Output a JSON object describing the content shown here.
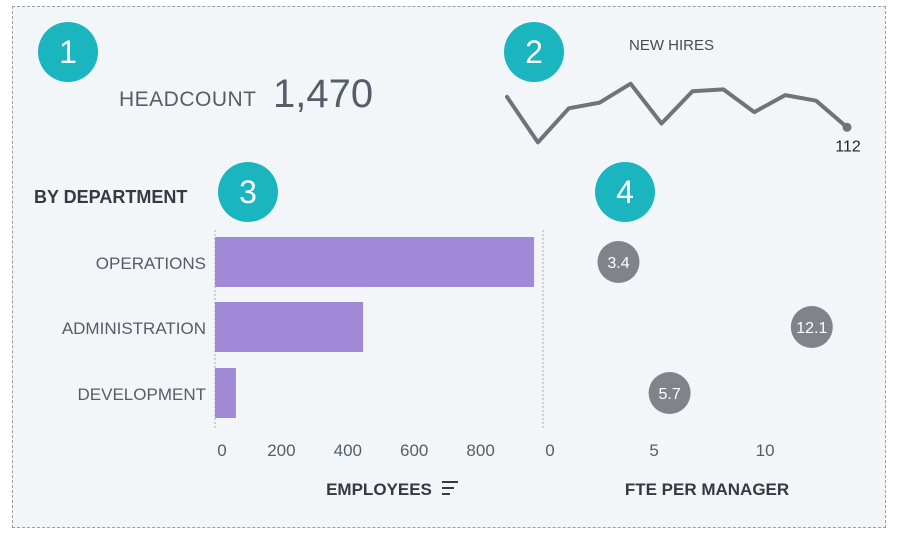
{
  "badges": [
    "1",
    "2",
    "3",
    "4"
  ],
  "headcount": {
    "label": "HEADCOUNT",
    "value": "1,470"
  },
  "new_hires": {
    "title": "NEW HIRES",
    "last_label": "112"
  },
  "section_title": "BY DEPARTMENT",
  "colors": {
    "badge": "#1bb5bf",
    "bar": "#a08ad8",
    "bubble": "#7e8489",
    "line": "#6e7479",
    "text": "#555d66"
  },
  "chart_data": [
    {
      "type": "line",
      "title": "NEW HIRES",
      "x": [
        1,
        2,
        3,
        4,
        5,
        6,
        7,
        8,
        9,
        10,
        11,
        12
      ],
      "values": [
        128,
        104,
        122,
        125,
        135,
        114,
        131,
        132,
        120,
        129,
        126,
        112
      ],
      "ylim": [
        100,
        138
      ],
      "last_value_label": "112"
    },
    {
      "type": "bar",
      "orientation": "horizontal",
      "title": "BY DEPARTMENT",
      "categories": [
        "OPERATIONS",
        "ADMINISTRATION",
        "DEVELOPMENT"
      ],
      "values": [
        961,
        446,
        63
      ],
      "xlabel": "EMPLOYEES",
      "xlim": [
        0,
        1000
      ],
      "ticks": [
        "0",
        "200",
        "400",
        "600",
        "800"
      ]
    },
    {
      "type": "scatter",
      "title": "FTE PER MANAGER",
      "categories": [
        "OPERATIONS",
        "ADMINISTRATION",
        "DEVELOPMENT"
      ],
      "values": [
        3.4,
        12.1,
        5.7
      ],
      "labels": [
        "3.4",
        "12.1",
        "5.7"
      ],
      "xlabel": "FTE PER MANAGER",
      "xlim": [
        0,
        14
      ],
      "ticks": [
        "0",
        "5",
        "10"
      ]
    }
  ]
}
